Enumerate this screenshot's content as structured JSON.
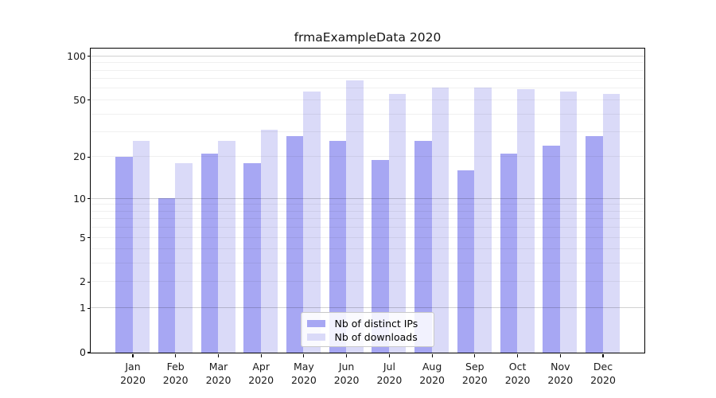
{
  "chart_data": {
    "type": "bar",
    "title": "frmaExampleData 2020",
    "categories": [
      "Jan",
      "Feb",
      "Mar",
      "Apr",
      "May",
      "Jun",
      "Jul",
      "Aug",
      "Sep",
      "Oct",
      "Nov",
      "Dec"
    ],
    "category_year": "2020",
    "series": [
      {
        "name": "Nb of distinct IPs",
        "color": "#a7a7f3",
        "values": [
          20,
          10,
          21,
          18,
          28,
          26,
          19,
          26,
          16,
          21,
          24,
          28
        ]
      },
      {
        "name": "Nb of downloads",
        "color": "#dadaf8",
        "values": [
          26,
          18,
          26,
          31,
          57,
          68,
          55,
          61,
          61,
          59,
          57,
          55
        ]
      }
    ],
    "xlabel": "",
    "ylabel": "",
    "yscale": "log10(1+v)",
    "yticks": [
      0,
      1,
      2,
      5,
      10,
      20,
      50,
      100
    ],
    "ylim": [
      0,
      113
    ],
    "grid": "horizontal",
    "grid_major_values": [
      1,
      10,
      100
    ],
    "grid_minor_values": [
      2,
      3,
      4,
      5,
      6,
      7,
      8,
      9,
      20,
      30,
      40,
      50,
      60,
      70,
      80,
      90
    ],
    "legend_position": "lower center"
  },
  "colors": {
    "axis": "#000000",
    "grid_major": "rgba(0,0,0,0.18)",
    "grid_minor": "rgba(0,0,0,0.06)",
    "text": "#1a1a1a",
    "legend_background": "rgba(255,255,255,0.85)",
    "legend_border": "#c9c9c9"
  }
}
